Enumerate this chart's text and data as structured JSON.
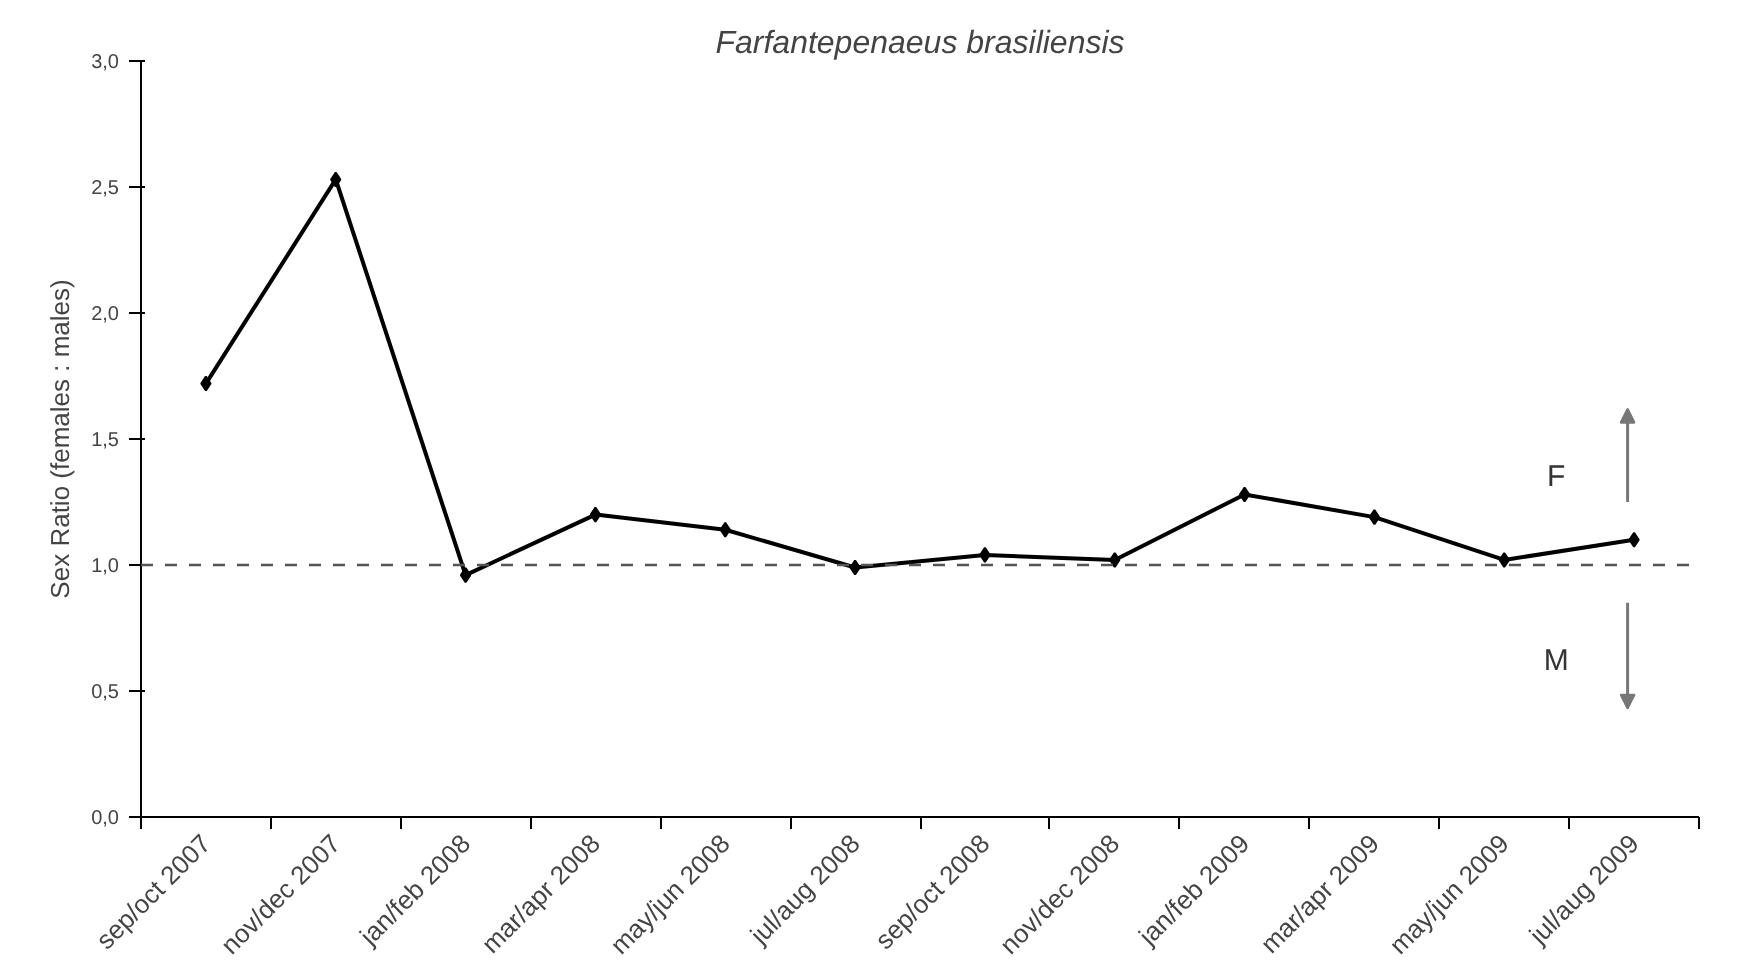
{
  "chart_data": {
    "type": "line",
    "title": "Farfantepenaeus brasiliensis",
    "ylabel": "Sex Ratio (females : males)",
    "categories": [
      "sep/oct 2007",
      "nov/dec 2007",
      "jan/feb 2008",
      "mar/apr 2008",
      "may/jun 2008",
      "jul/aug 2008",
      "sep/oct 2008",
      "nov/dec 2008",
      "jan/feb 2009",
      "mar/apr 2009",
      "may/jun 2009",
      "jul/aug 2009"
    ],
    "series": [
      {
        "color": "#000000",
        "values": [
          1.72,
          2.53,
          0.96,
          1.2,
          1.14,
          0.99,
          1.04,
          1.02,
          1.28,
          1.19,
          1.02,
          1.1
        ]
      }
    ],
    "ylim": [
      0,
      3
    ],
    "yticks": [
      {
        "value": 0,
        "label": "0,0"
      },
      {
        "value": 0.5,
        "label": "0,5"
      },
      {
        "value": 1,
        "label": "1,0"
      },
      {
        "value": 1.5,
        "label": "1,5"
      },
      {
        "value": 2,
        "label": "2,0"
      },
      {
        "value": 2.5,
        "label": "2,5"
      },
      {
        "value": 3,
        "label": "3,0"
      }
    ],
    "ref_lines": [
      {
        "axis": "y",
        "value": 1,
        "color": "#555555",
        "line_style": "dashed"
      }
    ],
    "annotations": [
      "F",
      "M"
    ],
    "marker": "diamond",
    "line_style": "solid",
    "grid": false
  }
}
